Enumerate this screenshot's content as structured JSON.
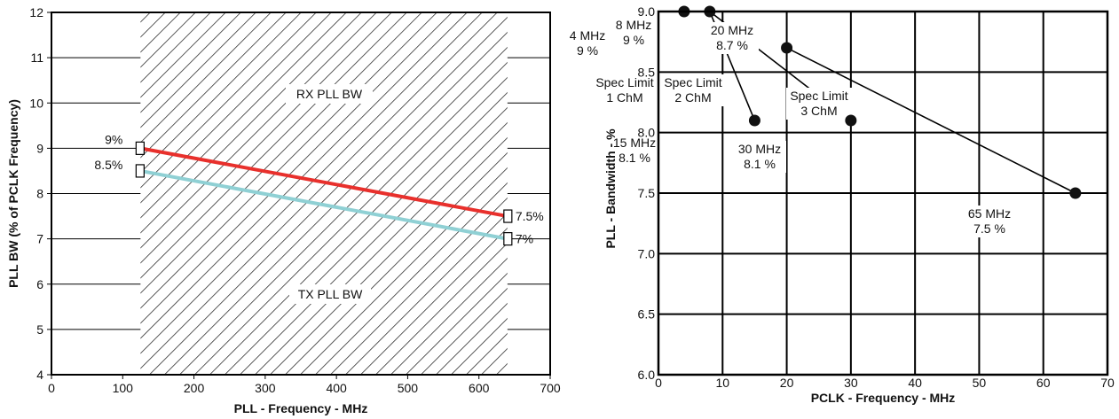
{
  "chart_data": [
    {
      "type": "line",
      "xlabel": "PLL - Frequency - MHz",
      "ylabel": "PLL BW (% of PCLK Frequency)",
      "xlim": [
        0,
        700
      ],
      "ylim": [
        4,
        12
      ],
      "x_ticks": [
        0,
        100,
        200,
        300,
        400,
        500,
        600,
        700
      ],
      "y_ticks": [
        4,
        5,
        6,
        7,
        8,
        9,
        10,
        11,
        12
      ],
      "grid": "horizontal",
      "hatched_region": [
        125,
        640
      ],
      "region_labels": [
        "RX PLL BW",
        "TX PLL BW"
      ],
      "series": [
        {
          "color": "#e8302c",
          "points": [
            [
              125,
              9
            ],
            [
              640,
              7.5
            ]
          ],
          "start_label": "9%",
          "end_label": "7.5%"
        },
        {
          "color": "#8fd0d4",
          "points": [
            [
              125,
              8.5
            ],
            [
              640,
              7
            ]
          ],
          "start_label": "8.5%",
          "end_label": "7%"
        }
      ]
    },
    {
      "type": "scatter",
      "xlabel": "PCLK - Frequency - MHz",
      "ylabel": "PLL - Bandwidth - %",
      "xlim": [
        0,
        70
      ],
      "ylim": [
        6.0,
        9.0
      ],
      "x_ticks": [
        0,
        10,
        20,
        30,
        40,
        50,
        60,
        70
      ],
      "y_ticks": [
        "6.0",
        "6.5",
        "7.0",
        "7.5",
        "8.0",
        "8.5",
        "9.0"
      ],
      "grid": "both",
      "points": [
        {
          "x": 4,
          "y": 9.0,
          "label": [
            "4 MHz",
            "9 %"
          ]
        },
        {
          "x": 8,
          "y": 9.0,
          "label": [
            "8 MHz",
            "9 %"
          ]
        },
        {
          "x": 15,
          "y": 8.1,
          "label": [
            "15 MHz",
            "8.1 %"
          ]
        },
        {
          "x": 20,
          "y": 8.7,
          "label": [
            "20 MHz",
            "8.7 %"
          ]
        },
        {
          "x": 30,
          "y": 8.1,
          "label": [
            "30 MHz",
            "8.1 %"
          ]
        },
        {
          "x": 65,
          "y": 7.5,
          "label": [
            "65 MHz",
            "7.5 %"
          ]
        }
      ],
      "spec_limit_lines": [
        {
          "from": [
            8,
            9.0
          ],
          "to": [
            15,
            8.1
          ],
          "label": [
            "Spec Limit",
            "1 ChM"
          ]
        },
        {
          "from": [
            8,
            9.0
          ],
          "to": [
            30,
            8.1
          ],
          "label": [
            "Spec Limit",
            "2 ChM"
          ]
        },
        {
          "from": [
            20,
            8.7
          ],
          "to": [
            65,
            7.5
          ],
          "label": [
            "Spec Limit",
            "3 ChM"
          ]
        }
      ]
    }
  ]
}
